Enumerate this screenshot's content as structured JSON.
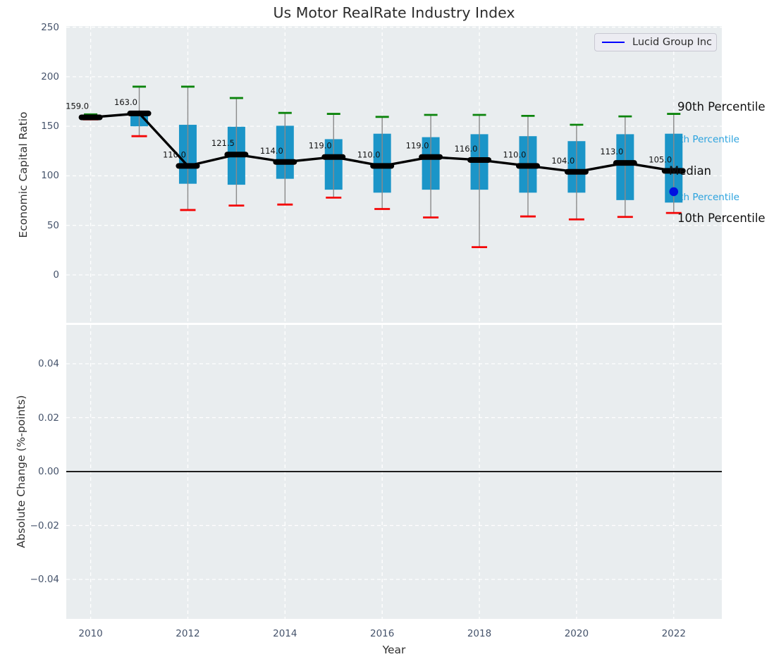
{
  "figure": {
    "title": "Us Motor RealRate Industry Index",
    "xlabel": "Year"
  },
  "legend": {
    "label": "Lucid Group Inc"
  },
  "percentile_labels": {
    "p90": "90th Percentile",
    "p75": "75th Percentile",
    "median": "Median",
    "p25": "25th Percentile",
    "p10": "10th Percentile"
  },
  "colors": {
    "box": "#1b95c8",
    "cap_high": "#0b840b",
    "cap_low": "#f40505",
    "median_line": "#000000",
    "whisker": "#8a8a8a",
    "overlay_dot": "#0011e0",
    "legend_line": "#0000ff",
    "annotation_blue": "#2aa2de",
    "axes_background": "#e9edef",
    "gridline": "#ffffff",
    "tick_label": "#45536b"
  },
  "chart_data": [
    {
      "type": "boxplot",
      "title": "Us Motor RealRate Industry Index",
      "ylabel": "Economic Capital Ratio",
      "ylim": [
        -48,
        251
      ],
      "grid": true,
      "legend_position": "upper right",
      "yticks": [
        {
          "value": 250,
          "label": "250"
        },
        {
          "value": 200,
          "label": "200"
        },
        {
          "value": 150,
          "label": "150"
        },
        {
          "value": 100,
          "label": "100"
        },
        {
          "value": 50,
          "label": "50"
        },
        {
          "value": 0,
          "label": "0"
        }
      ],
      "boxes": [
        {
          "year": 2010,
          "median": 159.0,
          "median_label": "159.0",
          "p90": 162.0,
          "p75": 160.5,
          "p25": 157.5,
          "p10": 157.0
        },
        {
          "year": 2011,
          "median": 163.0,
          "median_label": "163.0",
          "p90": 190.0,
          "p75": 163.0,
          "p25": 150.0,
          "p10": 140.0
        },
        {
          "year": 2012,
          "median": 110.0,
          "median_label": "110.0",
          "p90": 190.0,
          "p75": 151.5,
          "p25": 92.0,
          "p10": 65.5
        },
        {
          "year": 2013,
          "median": 121.5,
          "median_label": "121.5",
          "p90": 178.5,
          "p75": 149.5,
          "p25": 91.0,
          "p10": 70.0
        },
        {
          "year": 2014,
          "median": 114.0,
          "median_label": "114.0",
          "p90": 163.5,
          "p75": 150.5,
          "p25": 97.0,
          "p10": 71.0
        },
        {
          "year": 2015,
          "median": 119.0,
          "median_label": "119.0",
          "p90": 162.5,
          "p75": 137.0,
          "p25": 86.0,
          "p10": 78.0
        },
        {
          "year": 2016,
          "median": 110.0,
          "median_label": "110.0",
          "p90": 159.5,
          "p75": 142.5,
          "p25": 83.0,
          "p10": 66.5
        },
        {
          "year": 2017,
          "median": 119.0,
          "median_label": "119.0",
          "p90": 161.5,
          "p75": 139.0,
          "p25": 86.0,
          "p10": 58.0
        },
        {
          "year": 2018,
          "median": 116.0,
          "median_label": "116.0",
          "p90": 161.5,
          "p75": 142.0,
          "p25": 86.0,
          "p10": 28.0
        },
        {
          "year": 2019,
          "median": 110.0,
          "median_label": "110.0",
          "p90": 160.5,
          "p75": 140.0,
          "p25": 83.0,
          "p10": 59.0
        },
        {
          "year": 2020,
          "median": 104.0,
          "median_label": "104.0",
          "p90": 151.5,
          "p75": 135.0,
          "p25": 83.0,
          "p10": 56.0
        },
        {
          "year": 2021,
          "median": 113.0,
          "median_label": "113.0",
          "p90": 160.0,
          "p75": 142.0,
          "p25": 75.5,
          "p10": 58.5
        },
        {
          "year": 2022,
          "median": 105.0,
          "median_label": "105.0",
          "p90": 162.5,
          "p75": 142.5,
          "p25": 73.0,
          "p10": 62.5
        }
      ],
      "overlay_series": [
        {
          "name": "Lucid Group Inc",
          "points": [
            {
              "x": 2022,
              "y": 84
            }
          ]
        }
      ],
      "percentile_annotations": [
        "90th Percentile",
        "75th Percentile",
        "Median",
        "25th Percentile",
        "10th Percentile"
      ]
    },
    {
      "type": "line",
      "ylabel": "Absolute Change (%-points)",
      "ylim": [
        -0.055,
        0.055
      ],
      "grid": true,
      "zero_line": 0.0,
      "series": [],
      "yticks": [
        {
          "value": 0.04,
          "label": "0.04"
        },
        {
          "value": 0.02,
          "label": "0.02"
        },
        {
          "value": 0.0,
          "label": "0.00"
        },
        {
          "value": -0.02,
          "label": "−0.02"
        },
        {
          "value": -0.04,
          "label": "−0.04"
        }
      ],
      "xticks": [
        {
          "value": 2010,
          "label": "2010"
        },
        {
          "value": 2012,
          "label": "2012"
        },
        {
          "value": 2014,
          "label": "2014"
        },
        {
          "value": 2016,
          "label": "2016"
        },
        {
          "value": 2018,
          "label": "2018"
        },
        {
          "value": 2020,
          "label": "2020"
        },
        {
          "value": 2022,
          "label": "2022"
        }
      ]
    }
  ]
}
